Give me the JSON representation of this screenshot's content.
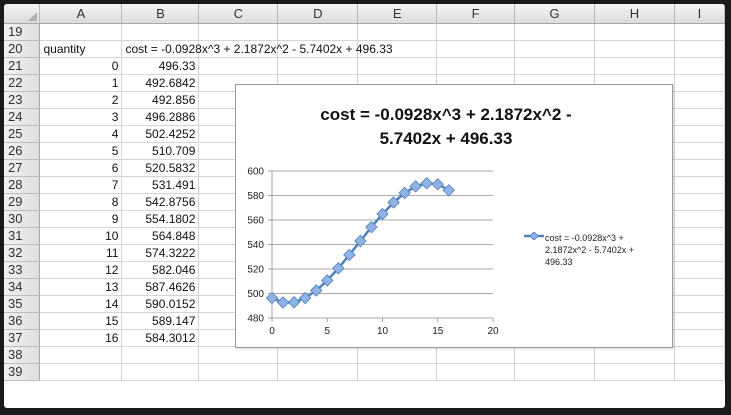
{
  "columns": [
    "",
    "A",
    "B",
    "C",
    "D",
    "E",
    "F",
    "G",
    "H",
    "I"
  ],
  "rows": [
    {
      "num": "19",
      "a": "",
      "b": ""
    },
    {
      "num": "20",
      "a": "quantity",
      "b": "cost =  -0.0928x^3 + 2.1872x^2 - 5.7402x + 496.33"
    },
    {
      "num": "21",
      "a": "0",
      "b": "496.33"
    },
    {
      "num": "22",
      "a": "1",
      "b": "492.6842"
    },
    {
      "num": "23",
      "a": "2",
      "b": "492.856"
    },
    {
      "num": "24",
      "a": "3",
      "b": "496.2886"
    },
    {
      "num": "25",
      "a": "4",
      "b": "502.4252"
    },
    {
      "num": "26",
      "a": "5",
      "b": "510.709"
    },
    {
      "num": "27",
      "a": "6",
      "b": "520.5832"
    },
    {
      "num": "28",
      "a": "7",
      "b": "531.491"
    },
    {
      "num": "29",
      "a": "8",
      "b": "542.8756"
    },
    {
      "num": "30",
      "a": "9",
      "b": "554.1802"
    },
    {
      "num": "31",
      "a": "10",
      "b": "564.848"
    },
    {
      "num": "32",
      "a": "11",
      "b": "574.3222"
    },
    {
      "num": "33",
      "a": "12",
      "b": "582.046"
    },
    {
      "num": "34",
      "a": "13",
      "b": "587.4626"
    },
    {
      "num": "35",
      "a": "14",
      "b": "590.0152"
    },
    {
      "num": "36",
      "a": "15",
      "b": "589.147"
    },
    {
      "num": "37",
      "a": "16",
      "b": "584.3012"
    },
    {
      "num": "38",
      "a": "",
      "b": ""
    },
    {
      "num": "39",
      "a": "",
      "b": ""
    }
  ],
  "chart": {
    "title_line1": "cost =  -0.0928x^3 + 2.1872x^2 -",
    "title_line2": "5.7402x + 496.33",
    "legend_label": "cost =  -0.0928x^3 + 2.1872x^2 - 5.7402x + 496.33",
    "series_color": "#4f81bd",
    "marker_color": "#8fb3e3"
  },
  "chart_data": {
    "type": "line",
    "title": "cost =  -0.0928x^3 + 2.1872x^2 - 5.7402x + 496.33",
    "xlabel": "",
    "ylabel": "",
    "xlim": [
      0,
      20
    ],
    "ylim": [
      480,
      600
    ],
    "x_ticks": [
      0,
      5,
      10,
      15,
      20
    ],
    "y_ticks": [
      480,
      500,
      520,
      540,
      560,
      580,
      600
    ],
    "grid": "horizontal",
    "legend_position": "right",
    "series": [
      {
        "name": "cost =  -0.0928x^3 + 2.1872x^2 - 5.7402x + 496.33",
        "x": [
          0,
          1,
          2,
          3,
          4,
          5,
          6,
          7,
          8,
          9,
          10,
          11,
          12,
          13,
          14,
          15,
          16
        ],
        "y": [
          496.33,
          492.6842,
          492.856,
          496.2886,
          502.4252,
          510.709,
          520.5832,
          531.491,
          542.8756,
          554.1802,
          564.848,
          574.3222,
          582.046,
          587.4626,
          590.0152,
          589.147,
          584.3012
        ]
      }
    ]
  }
}
